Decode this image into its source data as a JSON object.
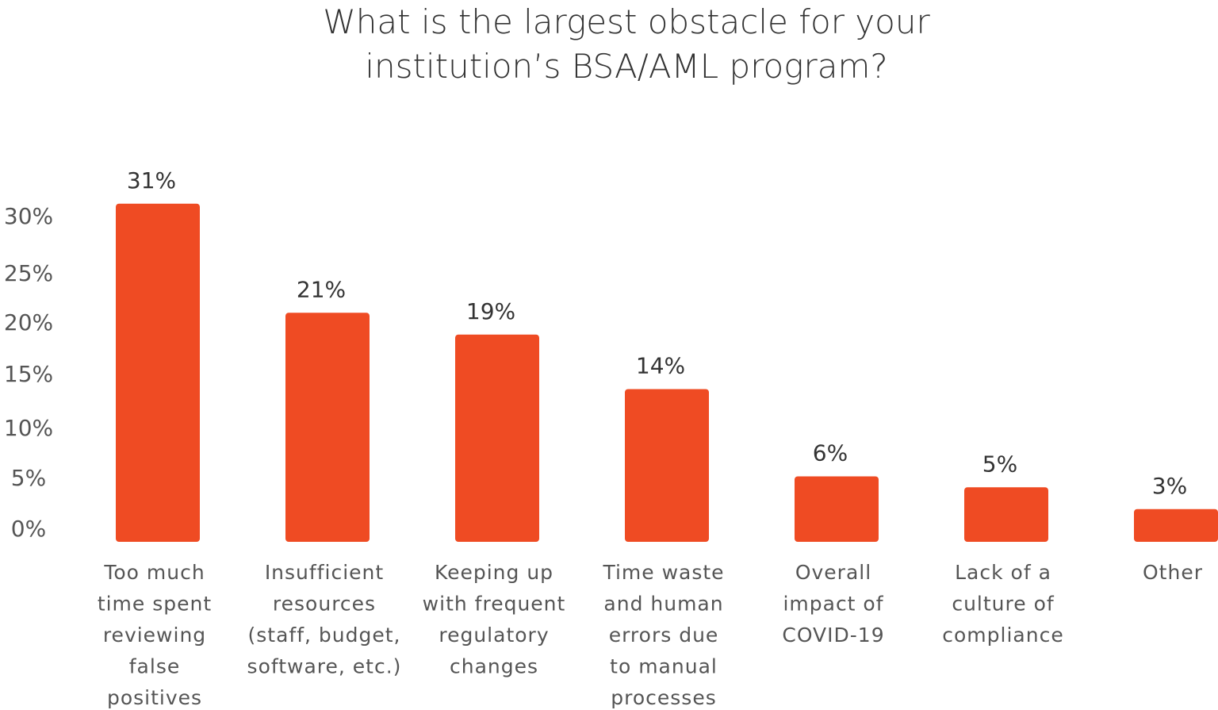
{
  "chart_data": {
    "type": "bar",
    "title_lines": [
      "What is the largest obstacle for your",
      "institution’s BSA/AML program?"
    ],
    "y_ticks": [
      "0%",
      "5%",
      "10%",
      "15%",
      "20%",
      "25%",
      "30%"
    ],
    "ylim": [
      0,
      31
    ],
    "bar_color": "#EF4B23",
    "categories": [
      [
        "Too much",
        "time spent",
        "reviewing",
        "false",
        "positives"
      ],
      [
        "Insufficient",
        "resources",
        "(staff, budget,",
        "software, etc.)"
      ],
      [
        "Keeping up",
        "with frequent",
        "regulatory",
        "changes"
      ],
      [
        "Time waste",
        "and human",
        "errors due",
        "to manual",
        "processes"
      ],
      [
        "Overall",
        "impact of",
        "COVID-19"
      ],
      [
        "Lack of a",
        "culture of",
        "compliance"
      ],
      [
        "Other"
      ]
    ],
    "values": [
      31,
      21,
      19,
      14,
      6,
      5,
      3
    ],
    "value_labels": [
      "31%",
      "21%",
      "19%",
      "14%",
      "6%",
      "5%",
      "3%"
    ]
  }
}
